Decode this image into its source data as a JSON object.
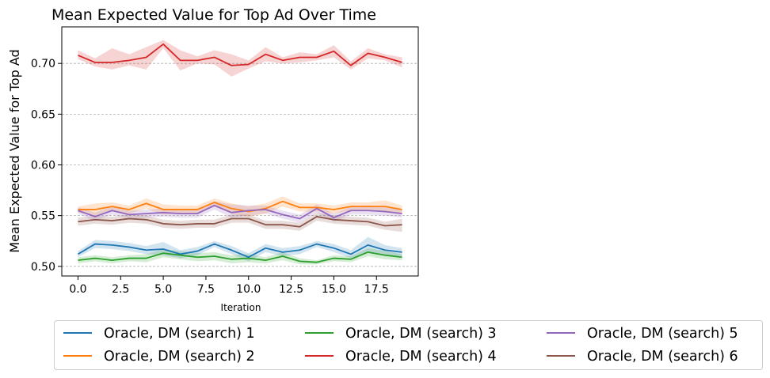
{
  "chart_data": {
    "type": "line",
    "title": "Mean Expected Value for Top Ad Over Time",
    "xlabel": "Iteration",
    "ylabel": "Mean Expected Value for Top Ad",
    "xlim": [
      -0.95,
      19.95
    ],
    "ylim": [
      0.4905,
      0.736
    ],
    "xticks": [
      0.0,
      2.5,
      5.0,
      7.5,
      10.0,
      12.5,
      15.0,
      17.5
    ],
    "xtick_labels": [
      "0.0",
      "2.5",
      "5.0",
      "7.5",
      "10.0",
      "12.5",
      "15.0",
      "17.5"
    ],
    "yticks": [
      0.5,
      0.55,
      0.6,
      0.65,
      0.7
    ],
    "ytick_labels": [
      "0.50",
      "0.55",
      "0.60",
      "0.65",
      "0.70"
    ],
    "grid": "horizontal dashed",
    "legend": {
      "placement": "bottom",
      "columns": 3
    },
    "x": [
      0,
      1,
      2,
      3,
      4,
      5,
      6,
      7,
      8,
      9,
      10,
      11,
      12,
      13,
      14,
      15,
      16,
      17,
      18,
      19
    ],
    "series": [
      {
        "name": "Oracle, DM (search) 1",
        "color": "#1f77b4",
        "values": [
          0.512,
          0.522,
          0.521,
          0.519,
          0.516,
          0.517,
          0.512,
          0.515,
          0.522,
          0.516,
          0.509,
          0.518,
          0.514,
          0.516,
          0.522,
          0.518,
          0.512,
          0.521,
          0.516,
          0.514
        ],
        "lower": [
          0.509,
          0.518,
          0.517,
          0.515,
          0.512,
          0.511,
          0.508,
          0.511,
          0.519,
          0.512,
          0.505,
          0.514,
          0.51,
          0.512,
          0.519,
          0.514,
          0.508,
          0.513,
          0.511,
          0.51
        ],
        "upper": [
          0.515,
          0.526,
          0.525,
          0.523,
          0.52,
          0.524,
          0.516,
          0.519,
          0.525,
          0.52,
          0.513,
          0.522,
          0.518,
          0.52,
          0.525,
          0.522,
          0.516,
          0.529,
          0.521,
          0.518
        ]
      },
      {
        "name": "Oracle, DM (search) 2",
        "color": "#ff7f0e",
        "values": [
          0.556,
          0.556,
          0.559,
          0.556,
          0.562,
          0.556,
          0.556,
          0.556,
          0.563,
          0.557,
          0.554,
          0.557,
          0.564,
          0.558,
          0.558,
          0.556,
          0.559,
          0.559,
          0.559,
          0.556
        ],
        "lower": [
          0.553,
          0.55,
          0.555,
          0.552,
          0.557,
          0.551,
          0.552,
          0.552,
          0.559,
          0.552,
          0.549,
          0.552,
          0.559,
          0.554,
          0.554,
          0.552,
          0.555,
          0.555,
          0.553,
          0.552
        ],
        "upper": [
          0.559,
          0.562,
          0.563,
          0.56,
          0.567,
          0.561,
          0.56,
          0.56,
          0.567,
          0.562,
          0.559,
          0.562,
          0.569,
          0.562,
          0.562,
          0.56,
          0.563,
          0.563,
          0.565,
          0.56
        ]
      },
      {
        "name": "Oracle, DM (search) 3",
        "color": "#2ca02c",
        "values": [
          0.506,
          0.508,
          0.506,
          0.508,
          0.508,
          0.513,
          0.511,
          0.509,
          0.51,
          0.507,
          0.508,
          0.506,
          0.51,
          0.505,
          0.504,
          0.508,
          0.507,
          0.514,
          0.511,
          0.509
        ],
        "lower": [
          0.503,
          0.505,
          0.503,
          0.505,
          0.504,
          0.509,
          0.507,
          0.505,
          0.506,
          0.503,
          0.504,
          0.503,
          0.506,
          0.502,
          0.502,
          0.505,
          0.504,
          0.51,
          0.507,
          0.506
        ],
        "upper": [
          0.509,
          0.511,
          0.509,
          0.511,
          0.512,
          0.517,
          0.515,
          0.513,
          0.514,
          0.511,
          0.512,
          0.509,
          0.514,
          0.508,
          0.506,
          0.511,
          0.51,
          0.518,
          0.515,
          0.512
        ]
      },
      {
        "name": "Oracle, DM (search) 4",
        "color": "#d62728",
        "values": [
          0.708,
          0.701,
          0.701,
          0.703,
          0.706,
          0.719,
          0.703,
          0.703,
          0.706,
          0.698,
          0.699,
          0.709,
          0.703,
          0.706,
          0.706,
          0.712,
          0.698,
          0.71,
          0.706,
          0.701
        ],
        "lower": [
          0.704,
          0.697,
          0.694,
          0.698,
          0.694,
          0.715,
          0.693,
          0.7,
          0.699,
          0.687,
          0.695,
          0.702,
          0.7,
          0.701,
          0.703,
          0.706,
          0.694,
          0.705,
          0.703,
          0.696
        ],
        "upper": [
          0.713,
          0.705,
          0.715,
          0.709,
          0.716,
          0.723,
          0.713,
          0.707,
          0.713,
          0.709,
          0.703,
          0.716,
          0.706,
          0.711,
          0.709,
          0.718,
          0.702,
          0.715,
          0.709,
          0.706
        ]
      },
      {
        "name": "Oracle, DM (search) 5",
        "color": "#9467bd",
        "values": [
          0.555,
          0.549,
          0.555,
          0.551,
          0.552,
          0.553,
          0.552,
          0.552,
          0.56,
          0.553,
          0.555,
          0.556,
          0.551,
          0.547,
          0.557,
          0.548,
          0.555,
          0.555,
          0.554,
          0.552
        ],
        "lower": [
          0.552,
          0.545,
          0.551,
          0.547,
          0.548,
          0.549,
          0.548,
          0.548,
          0.556,
          0.548,
          0.55,
          0.552,
          0.547,
          0.543,
          0.553,
          0.544,
          0.551,
          0.551,
          0.55,
          0.548
        ],
        "upper": [
          0.558,
          0.553,
          0.559,
          0.555,
          0.556,
          0.557,
          0.556,
          0.556,
          0.564,
          0.561,
          0.56,
          0.56,
          0.555,
          0.551,
          0.561,
          0.552,
          0.559,
          0.56,
          0.558,
          0.556
        ]
      },
      {
        "name": "Oracle, DM (search) 6",
        "color": "#8c564b",
        "values": [
          0.544,
          0.546,
          0.545,
          0.547,
          0.546,
          0.542,
          0.541,
          0.542,
          0.542,
          0.547,
          0.547,
          0.541,
          0.541,
          0.539,
          0.549,
          0.546,
          0.545,
          0.544,
          0.54,
          0.541
        ],
        "lower": [
          0.54,
          0.542,
          0.541,
          0.543,
          0.542,
          0.538,
          0.537,
          0.538,
          0.538,
          0.543,
          0.543,
          0.537,
          0.537,
          0.535,
          0.545,
          0.542,
          0.541,
          0.54,
          0.536,
          0.534
        ],
        "upper": [
          0.548,
          0.55,
          0.549,
          0.551,
          0.55,
          0.546,
          0.545,
          0.546,
          0.546,
          0.551,
          0.551,
          0.545,
          0.545,
          0.543,
          0.553,
          0.55,
          0.549,
          0.548,
          0.544,
          0.547
        ]
      }
    ]
  }
}
